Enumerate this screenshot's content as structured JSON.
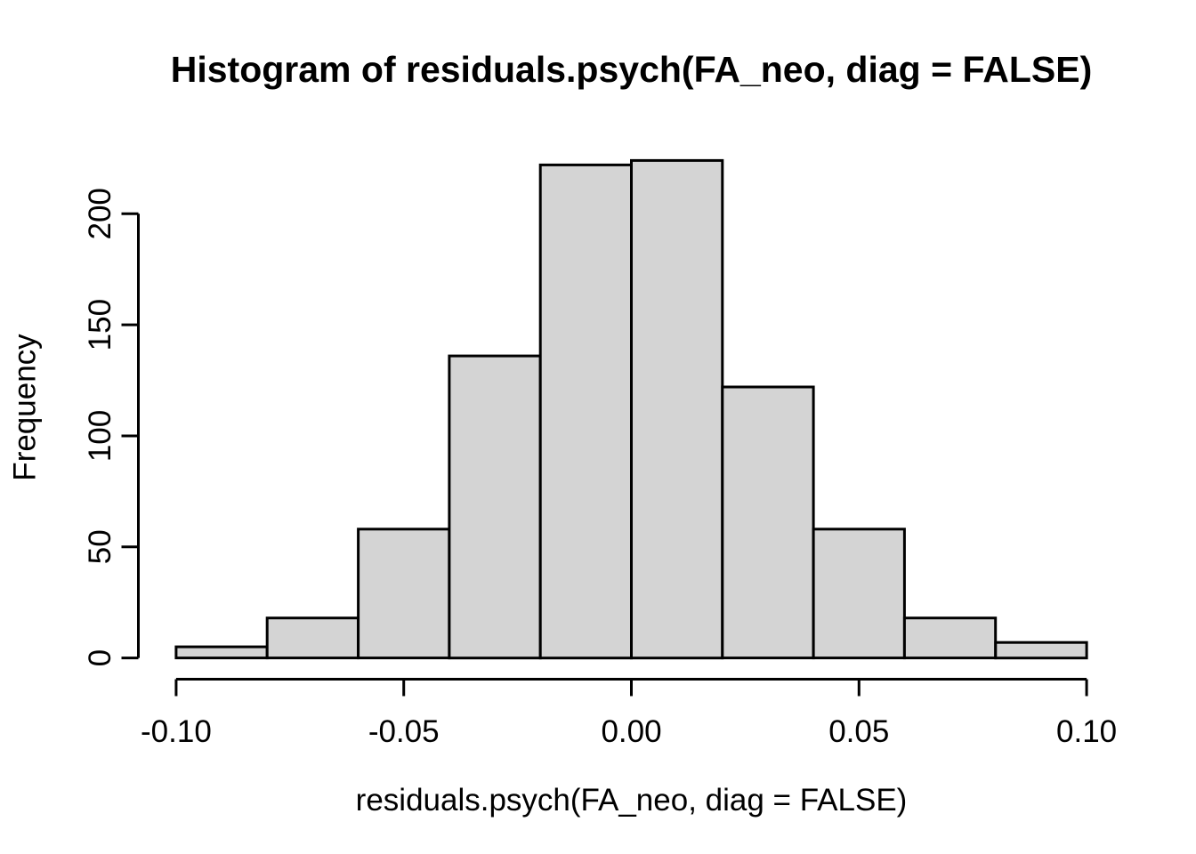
{
  "figure": {
    "background": "#ffffff",
    "text_color": "#000000"
  },
  "chart_data": {
    "type": "bar",
    "chart_kind": "histogram",
    "title": "Histogram of residuals.psych(FA_neo, diag = FALSE)",
    "xlabel": "residuals.psych(FA_neo, diag = FALSE)",
    "ylabel": "Frequency",
    "bins": {
      "breaks": [
        -0.1,
        -0.08,
        -0.06,
        -0.04,
        -0.02,
        0.0,
        0.02,
        0.04,
        0.06,
        0.08,
        0.1
      ],
      "counts": [
        5,
        18,
        58,
        136,
        222,
        224,
        122,
        58,
        18,
        7
      ]
    },
    "x_ticks": {
      "values": [
        -0.1,
        -0.05,
        0.0,
        0.05,
        0.1
      ],
      "labels": [
        "-0.10",
        "-0.05",
        "0.00",
        "0.05",
        "0.10"
      ]
    },
    "y_ticks": {
      "values": [
        0,
        50,
        100,
        150,
        200
      ],
      "labels": [
        "0",
        "50",
        "100",
        "150",
        "200"
      ]
    },
    "xlim": [
      -0.1,
      0.1
    ],
    "ylim": [
      0,
      224
    ],
    "grid": "off",
    "legend": "none",
    "bar_fill": "#d4d4d4",
    "bar_border": "#000000",
    "axis_color": "#000000"
  }
}
